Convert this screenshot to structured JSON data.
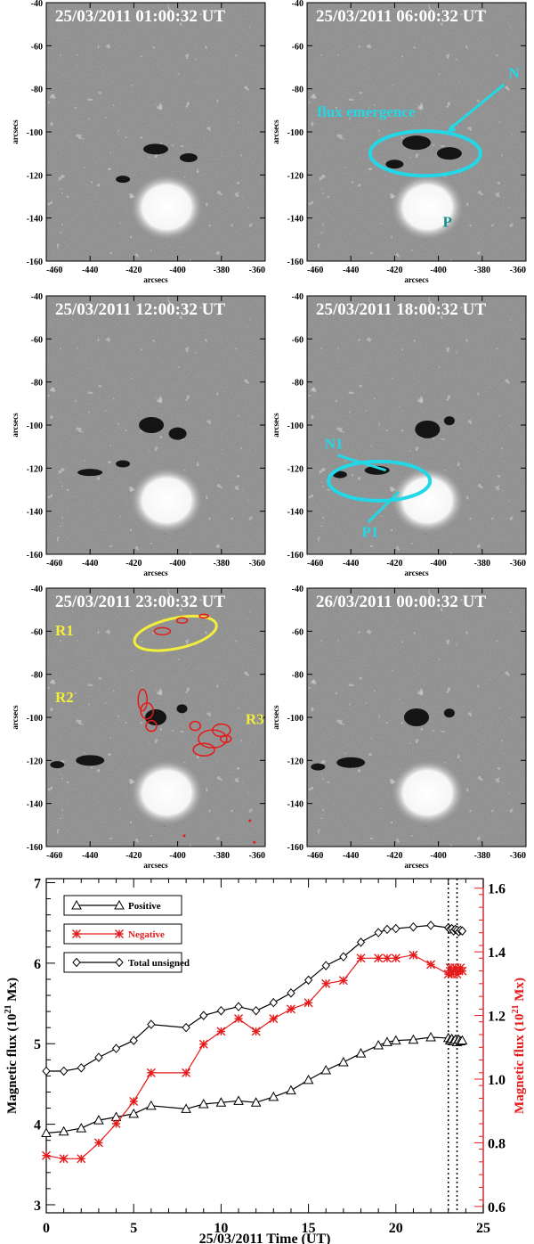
{
  "panels": [
    {
      "title": "25/03/2011 01:00:32 UT"
    },
    {
      "title": "25/03/2011 06:00:32 UT"
    },
    {
      "title": "25/03/2011 12:00:32 UT"
    },
    {
      "title": "25/03/2011 18:00:32 UT"
    },
    {
      "title": "25/03/2011 23:00:32 UT"
    },
    {
      "title": "26/03/2011 00:00:32 UT"
    }
  ],
  "magnetogram_axes": {
    "xlabel": "arcsecs",
    "ylabel": "arcsecs",
    "xticks": [
      "-460",
      "-440",
      "-420",
      "-400",
      "-380",
      "-360"
    ],
    "yticks": [
      "-40",
      "-60",
      "-80",
      "-100",
      "-120",
      "-140",
      "-160"
    ]
  },
  "annotations": {
    "flux_emergence": "flux emergence",
    "N": "N",
    "P": "P",
    "N1": "N1",
    "P1": "P1",
    "R1": "R1",
    "R2": "R2",
    "R3": "R3"
  },
  "colors": {
    "cyan": "#22d8e6",
    "yellow": "#f2ee3a",
    "red": "#e51b1b",
    "teal_text": "#1a8c8c",
    "black": "#000000"
  },
  "chart_data": {
    "type": "line",
    "xlabel": "25/03/2011  Time (UT)",
    "ylabel_left": "Magnetic flux (10",
    "ylabel_left_exp": "21",
    "ylabel_left_unit": " Mx)",
    "ylabel_right": "Magnetic flux (10",
    "ylabel_right_exp": "21",
    "ylabel_right_unit": " Mx)",
    "xlim": [
      0,
      25
    ],
    "ylim_left": [
      2.9,
      7.05
    ],
    "ylim_right": [
      0.58,
      1.63
    ],
    "xticks": [
      "0",
      "5",
      "10",
      "15",
      "20",
      "25"
    ],
    "yticks_left": [
      "3",
      "4",
      "5",
      "6",
      "7"
    ],
    "yticks_right": [
      "0.6",
      "0.8",
      "1.0",
      "1.2",
      "1.4",
      "1.6"
    ],
    "vlines": [
      23.0,
      23.5
    ],
    "legend": [
      {
        "label": "Positive",
        "color": "#000000",
        "marker": "triangle"
      },
      {
        "label": "Negative",
        "color": "#e51b1b",
        "marker": "asterisk"
      },
      {
        "label": "Total unsigned",
        "color": "#000000",
        "marker": "diamond"
      }
    ],
    "series": [
      {
        "name": "Positive",
        "axis": "left",
        "color": "#000000",
        "marker": "triangle",
        "x": [
          0,
          1,
          2,
          3,
          4,
          5,
          6,
          8,
          9,
          10,
          11,
          12,
          13,
          14,
          15,
          16,
          17,
          18,
          19,
          19.5,
          20,
          21,
          22,
          23,
          23.1,
          23.2,
          23.3,
          23.4,
          23.5,
          23.6,
          23.7,
          23.8
        ],
        "values": [
          3.89,
          3.91,
          3.95,
          4.05,
          4.09,
          4.13,
          4.23,
          4.19,
          4.25,
          4.27,
          4.29,
          4.27,
          4.34,
          4.42,
          4.55,
          4.67,
          4.77,
          4.88,
          4.98,
          5.02,
          5.04,
          5.05,
          5.08,
          5.07,
          5.04,
          5.06,
          5.03,
          5.05,
          5.02,
          5.05,
          5.03,
          5.04
        ]
      },
      {
        "name": "Negative",
        "axis": "right",
        "color": "#e51b1b",
        "marker": "asterisk",
        "x": [
          0,
          1,
          2,
          3,
          4,
          5,
          6,
          8,
          9,
          10,
          11,
          12,
          13,
          14,
          15,
          16,
          17,
          18,
          19,
          19.5,
          20,
          21,
          22,
          23,
          23.1,
          23.2,
          23.3,
          23.4,
          23.5,
          23.6,
          23.7,
          23.8
        ],
        "values": [
          0.76,
          0.75,
          0.75,
          0.8,
          0.86,
          0.93,
          1.02,
          1.02,
          1.11,
          1.15,
          1.19,
          1.15,
          1.19,
          1.22,
          1.24,
          1.3,
          1.31,
          1.38,
          1.38,
          1.38,
          1.38,
          1.39,
          1.36,
          1.33,
          1.35,
          1.33,
          1.34,
          1.35,
          1.33,
          1.34,
          1.35,
          1.34
        ]
      },
      {
        "name": "Total unsigned",
        "axis": "left",
        "color": "#000000",
        "marker": "diamond",
        "x": [
          0,
          1,
          2,
          3,
          4,
          5,
          6,
          8,
          9,
          10,
          11,
          12,
          13,
          14,
          15,
          16,
          17,
          18,
          19,
          19.5,
          20,
          21,
          22,
          23,
          23.1,
          23.2,
          23.3,
          23.4,
          23.5,
          23.6,
          23.7,
          23.8
        ],
        "values": [
          4.66,
          4.66,
          4.7,
          4.83,
          4.94,
          5.04,
          5.24,
          5.2,
          5.35,
          5.41,
          5.46,
          5.41,
          5.51,
          5.63,
          5.79,
          5.97,
          6.08,
          6.26,
          6.38,
          6.42,
          6.43,
          6.45,
          6.47,
          6.44,
          6.42,
          6.43,
          6.4,
          6.42,
          6.41,
          6.39,
          6.41,
          6.4
        ]
      }
    ]
  }
}
